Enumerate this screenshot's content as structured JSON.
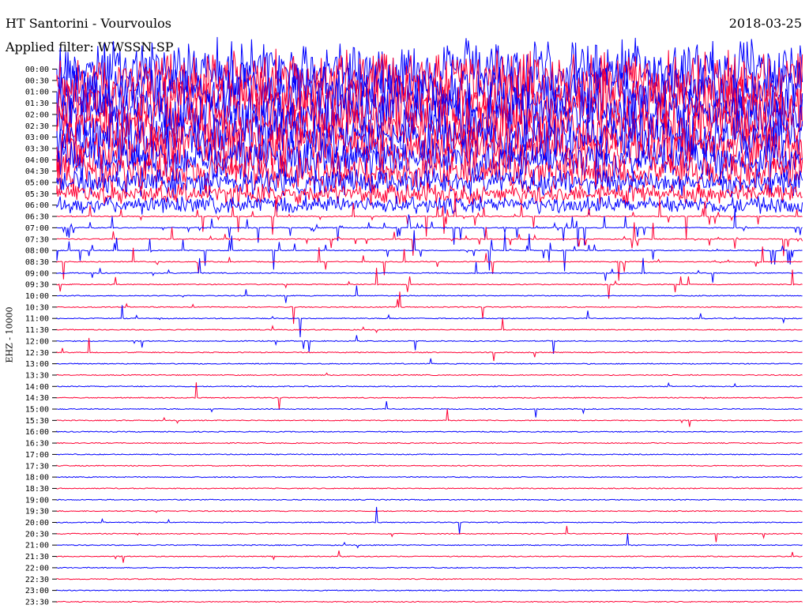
{
  "header": {
    "station": "HT Santorini - Vourvoulos",
    "date": "2018-03-25",
    "filter": "Applied filter: WWSSN-SP"
  },
  "channel_label": "EHZ - 10000",
  "chart_data": {
    "type": "line",
    "title": "HT Santorini - Vourvoulos",
    "subtitle": "Applied filter: WWSSN-SP",
    "ylabel": "EHZ - 10000",
    "y_ticks": [
      "00:00",
      "00:30",
      "01:00",
      "01:30",
      "02:00",
      "02:30",
      "03:00",
      "03:30",
      "04:00",
      "04:30",
      "05:00",
      "05:30",
      "06:00",
      "06:30",
      "07:00",
      "07:30",
      "08:00",
      "08:30",
      "09:00",
      "09:30",
      "10:00",
      "10:30",
      "11:00",
      "11:30",
      "12:00",
      "12:30",
      "13:00",
      "13:30",
      "14:00",
      "14:30",
      "15:00",
      "15:30",
      "16:00",
      "16:30",
      "17:00",
      "17:30",
      "18:00",
      "18:30",
      "19:00",
      "19:30",
      "20:00",
      "20:30",
      "21:00",
      "21:30",
      "22:00",
      "22:30",
      "23:00",
      "23:30"
    ],
    "trace_colors": [
      "#0000ff",
      "#ff0033"
    ],
    "activity_level": [
      1.0,
      1.0,
      1.0,
      1.0,
      1.0,
      0.95,
      0.9,
      0.85,
      0.75,
      0.65,
      0.45,
      0.35,
      0.3,
      0.25,
      0.22,
      0.2,
      0.15,
      0.12,
      0.06,
      0.05,
      0.03,
      0.03,
      0.03,
      0.03,
      0.02,
      0.01,
      0.01,
      0.01,
      0.01,
      0.01,
      0.01,
      0.01,
      0.0,
      0.0,
      0.0,
      0.0,
      0.0,
      0.0,
      0.0,
      0.01,
      0.01,
      0.01,
      0.01,
      0.01,
      0.0,
      0.0,
      0.0,
      0.0
    ]
  }
}
